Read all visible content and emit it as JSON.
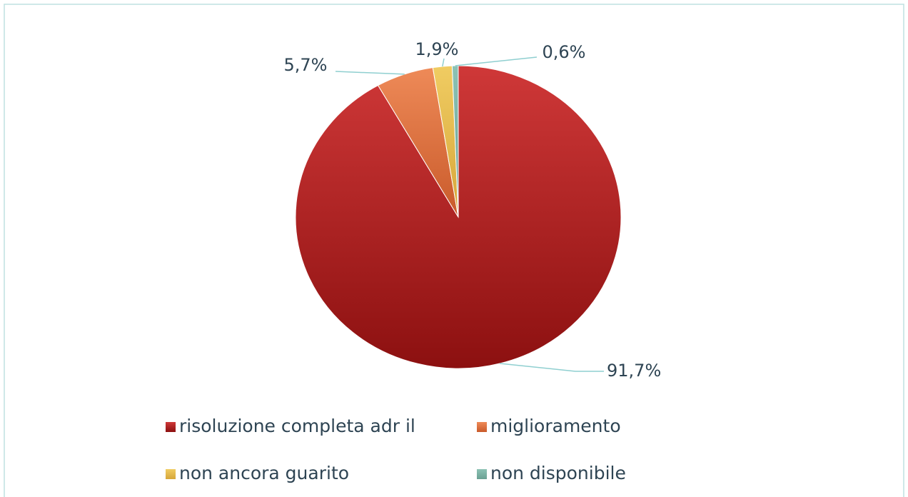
{
  "chart_data": {
    "type": "pie",
    "categories": [
      "risoluzione completa adr il",
      "miglioramento",
      "non ancora guarito",
      "non disponibile"
    ],
    "values": [
      91.7,
      5.7,
      1.9,
      0.6
    ],
    "value_labels": [
      "91,7%",
      "5,7%",
      "1,9%",
      "0,6%"
    ],
    "colors": [
      "#c0302e",
      "#e07543",
      "#e6bd4f",
      "#7fb3a6"
    ],
    "legend": "bottom"
  }
}
